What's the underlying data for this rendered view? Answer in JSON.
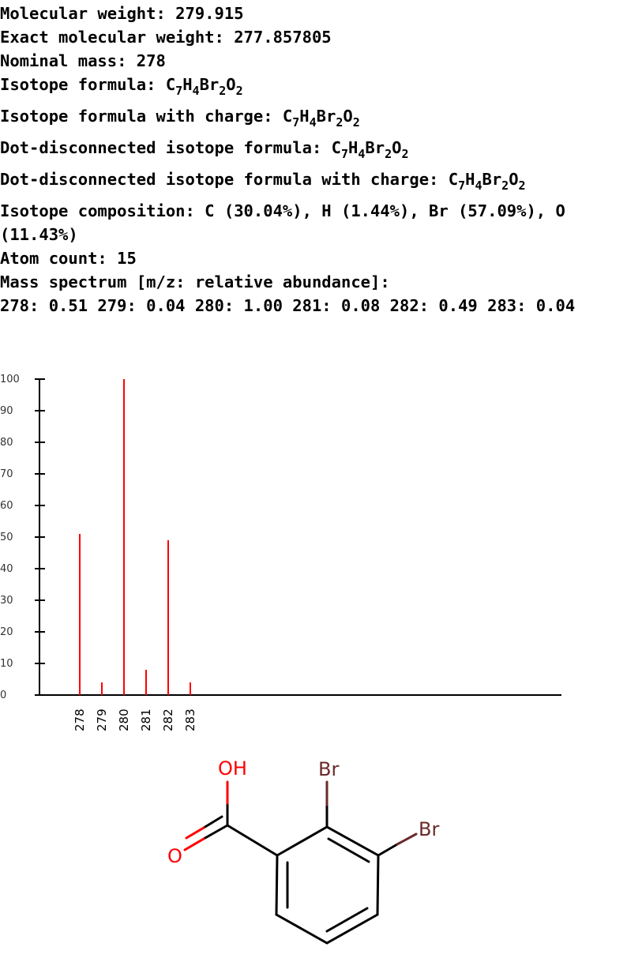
{
  "properties": {
    "molecular_weight": "Molecular weight: 279.915",
    "exact_weight": "Exact molecular weight: 277.857805",
    "nominal_mass": "Nominal mass: 278",
    "isotope_formula_label": "Isotope formula: ",
    "isotope_formula_charge_label": "Isotope formula with charge: ",
    "dot_formula_label": "Dot-disconnected isotope formula: ",
    "dot_formula_charge_label": "Dot-disconnected isotope formula with charge: ",
    "formula": [
      [
        "C",
        "7"
      ],
      [
        "H",
        "4"
      ],
      [
        "Br",
        "2"
      ],
      [
        "O",
        "2"
      ]
    ],
    "composition": "Isotope composition: C (30.04%), H (1.44%), Br (57.09%), O (11.43%)",
    "atom_count": "Atom count: 15",
    "mass_spectrum_label": "Mass spectrum [m/z: relative abundance]:",
    "mass_spectrum": "278: 0.51 279: 0.04 280: 1.00 281: 0.08 282: 0.49 283: 0.04"
  },
  "chart_data": {
    "type": "bar",
    "categories": [
      "278",
      "279",
      "280",
      "281",
      "282",
      "283"
    ],
    "values": [
      51,
      4,
      100,
      8,
      49,
      4
    ],
    "ylim": [
      0,
      100
    ],
    "yticks": [
      "0",
      "10",
      "20",
      "30",
      "40",
      "50",
      "60",
      "70",
      "80",
      "90",
      "100"
    ],
    "bar_color": "#ff0000",
    "grid": false
  },
  "structure": {
    "atoms": {
      "oh": "OH",
      "o": "O",
      "br1": "Br",
      "br2": "Br"
    },
    "colors": {
      "oxygen": "#ff0000",
      "bromine": "#6b2a2a",
      "carbon": "#000000"
    }
  }
}
